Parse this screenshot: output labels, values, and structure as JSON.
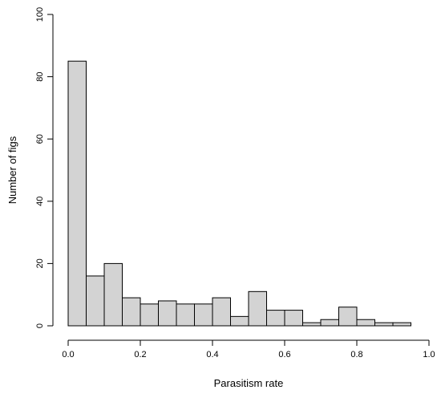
{
  "chart_data": {
    "type": "bar",
    "subtype": "histogram",
    "title": "",
    "xlabel": "Parasitism rate",
    "ylabel": "Number of figs",
    "bin_width": 0.05,
    "bins": [
      {
        "start": 0.0,
        "end": 0.05,
        "count": 85
      },
      {
        "start": 0.05,
        "end": 0.1,
        "count": 16
      },
      {
        "start": 0.1,
        "end": 0.15,
        "count": 20
      },
      {
        "start": 0.15,
        "end": 0.2,
        "count": 9
      },
      {
        "start": 0.2,
        "end": 0.25,
        "count": 7
      },
      {
        "start": 0.25,
        "end": 0.3,
        "count": 8
      },
      {
        "start": 0.3,
        "end": 0.35,
        "count": 7
      },
      {
        "start": 0.35,
        "end": 0.4,
        "count": 7
      },
      {
        "start": 0.4,
        "end": 0.45,
        "count": 9
      },
      {
        "start": 0.45,
        "end": 0.5,
        "count": 3
      },
      {
        "start": 0.5,
        "end": 0.55,
        "count": 11
      },
      {
        "start": 0.55,
        "end": 0.6,
        "count": 5
      },
      {
        "start": 0.6,
        "end": 0.65,
        "count": 5
      },
      {
        "start": 0.65,
        "end": 0.7,
        "count": 1
      },
      {
        "start": 0.7,
        "end": 0.75,
        "count": 2
      },
      {
        "start": 0.75,
        "end": 0.8,
        "count": 6
      },
      {
        "start": 0.8,
        "end": 0.85,
        "count": 2
      },
      {
        "start": 0.85,
        "end": 0.9,
        "count": 1
      },
      {
        "start": 0.9,
        "end": 0.95,
        "count": 1
      }
    ],
    "xlim": [
      0,
      1
    ],
    "ylim": [
      0,
      100
    ],
    "x_ticks": [
      0.0,
      0.2,
      0.4,
      0.6,
      0.8,
      1.0
    ],
    "x_tick_labels": [
      "0.0",
      "0.2",
      "0.4",
      "0.6",
      "0.8",
      "1.0"
    ],
    "y_ticks": [
      0,
      20,
      40,
      60,
      80,
      100
    ],
    "y_tick_labels": [
      "0",
      "20",
      "40",
      "60",
      "80",
      "100"
    ],
    "grid": false,
    "legend": "none",
    "colors": {
      "bar_fill": "#d3d3d3",
      "bar_stroke": "#000000"
    }
  }
}
